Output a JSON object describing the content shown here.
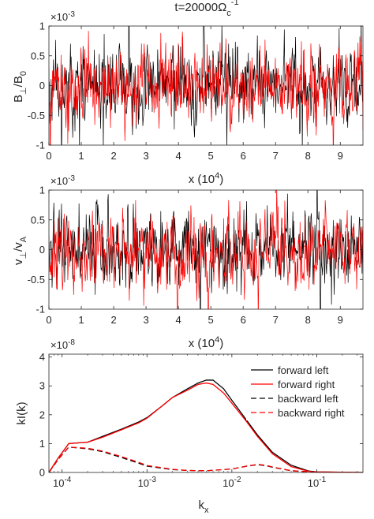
{
  "figure_title": {
    "prefix": "t=20000",
    "omega": "Ω",
    "sub": "c",
    "sup": "-1"
  },
  "chart_data": [
    {
      "type": "line",
      "ylabel": {
        "main": "B",
        "sub": "⊥",
        "rest": "/B",
        "sub2": "0"
      },
      "xlabel": {
        "main": "x (10",
        "sup": "4",
        "close": ")"
      },
      "exponent": {
        "base": "×10",
        "sup": "-3"
      },
      "xlim": [
        0,
        9.7
      ],
      "ylim": [
        -1,
        1
      ],
      "xticks": [
        0,
        1,
        2,
        3,
        4,
        5,
        6,
        7,
        8,
        9
      ],
      "xticklabels": [
        "0",
        "1",
        "2",
        "3",
        "4",
        "5",
        "6",
        "7",
        "8",
        "9"
      ],
      "yticks": [
        -1,
        -0.5,
        0,
        0.5,
        1
      ],
      "yticklabels": [
        "-1",
        "-0.5",
        "0",
        "0.5",
        "1"
      ],
      "series": [
        {
          "color": "#000000",
          "samples": 700,
          "seed": 11,
          "amp": 0.3
        },
        {
          "color": "#ff0000",
          "samples": 700,
          "seed": 29,
          "amp": 0.3
        }
      ]
    },
    {
      "type": "line",
      "ylabel": {
        "main": "v",
        "sub": "⊥",
        "rest": "/v",
        "sub2": "A"
      },
      "xlabel": {
        "main": "x (10",
        "sup": "4",
        "close": ")"
      },
      "exponent": {
        "base": "×10",
        "sup": "-3"
      },
      "xlim": [
        0,
        9.7
      ],
      "ylim": [
        -1,
        1
      ],
      "xticks": [
        0,
        1,
        2,
        3,
        4,
        5,
        6,
        7,
        8,
        9
      ],
      "xticklabels": [
        "0",
        "1",
        "2",
        "3",
        "4",
        "5",
        "6",
        "7",
        "8",
        "9"
      ],
      "yticks": [
        -1,
        -0.5,
        0,
        0.5,
        1
      ],
      "yticklabels": [
        "-1",
        "-0.5",
        "0",
        "0.5",
        "1"
      ],
      "series": [
        {
          "color": "#000000",
          "samples": 700,
          "seed": 47,
          "amp": 0.3
        },
        {
          "color": "#ff0000",
          "samples": 700,
          "seed": 83,
          "amp": 0.3
        }
      ]
    },
    {
      "type": "line",
      "xscale": "log",
      "ylabel": {
        "main": "kI(k)"
      },
      "xlabel": {
        "main": "k",
        "sub": "x"
      },
      "exponent": {
        "base": "×10",
        "sup": "-8"
      },
      "xlim": [
        7e-05,
        0.35
      ],
      "ylim": [
        0,
        4.1
      ],
      "xticks": [
        0.0001,
        0.001,
        0.01,
        0.1
      ],
      "xticklabels": [
        {
          "base": "10",
          "sup": "-4"
        },
        {
          "base": "10",
          "sup": "-3"
        },
        {
          "base": "10",
          "sup": "-2"
        },
        {
          "base": "10",
          "sup": "-1"
        }
      ],
      "yticks": [
        0,
        1,
        2,
        3,
        4
      ],
      "yticklabels": [
        "0",
        "1",
        "2",
        "3",
        "4"
      ],
      "legend": {
        "position": "top-right"
      },
      "series": [
        {
          "name": "forward left",
          "color": "#000000",
          "dash": "solid",
          "points": [
            [
              7e-05,
              0
            ],
            [
              9e-05,
              0.5
            ],
            [
              0.00012,
              1.0
            ],
            [
              0.0002,
              1.05
            ],
            [
              0.0003,
              1.25
            ],
            [
              0.0005,
              1.5
            ],
            [
              0.0008,
              1.75
            ],
            [
              0.001,
              1.9
            ],
            [
              0.0015,
              2.3
            ],
            [
              0.002,
              2.6
            ],
            [
              0.003,
              2.9
            ],
            [
              0.004,
              3.1
            ],
            [
              0.005,
              3.2
            ],
            [
              0.006,
              3.2
            ],
            [
              0.008,
              2.9
            ],
            [
              0.01,
              2.5
            ],
            [
              0.015,
              1.8
            ],
            [
              0.02,
              1.3
            ],
            [
              0.03,
              0.7
            ],
            [
              0.05,
              0.25
            ],
            [
              0.08,
              0.05
            ],
            [
              0.1,
              0.02
            ],
            [
              0.35,
              0
            ]
          ]
        },
        {
          "name": "forward right",
          "color": "#ff0000",
          "dash": "solid",
          "points": [
            [
              7e-05,
              0
            ],
            [
              9e-05,
              0.5
            ],
            [
              0.00012,
              1.0
            ],
            [
              0.0002,
              1.05
            ],
            [
              0.0003,
              1.22
            ],
            [
              0.0005,
              1.48
            ],
            [
              0.0008,
              1.72
            ],
            [
              0.001,
              1.88
            ],
            [
              0.0015,
              2.3
            ],
            [
              0.002,
              2.6
            ],
            [
              0.003,
              2.85
            ],
            [
              0.004,
              3.05
            ],
            [
              0.005,
              3.1
            ],
            [
              0.006,
              3.05
            ],
            [
              0.008,
              2.75
            ],
            [
              0.01,
              2.4
            ],
            [
              0.015,
              1.75
            ],
            [
              0.02,
              1.25
            ],
            [
              0.03,
              0.65
            ],
            [
              0.05,
              0.2
            ],
            [
              0.08,
              0.04
            ],
            [
              0.1,
              0.02
            ],
            [
              0.35,
              0
            ]
          ]
        },
        {
          "name": "backward left",
          "color": "#000000",
          "dash": "dashed",
          "points": [
            [
              7e-05,
              0
            ],
            [
              9e-05,
              0.45
            ],
            [
              0.00012,
              0.88
            ],
            [
              0.0002,
              0.82
            ],
            [
              0.0003,
              0.72
            ],
            [
              0.0005,
              0.52
            ],
            [
              0.0008,
              0.32
            ],
            [
              0.001,
              0.22
            ],
            [
              0.002,
              0.1
            ],
            [
              0.003,
              0.07
            ],
            [
              0.005,
              0.06
            ],
            [
              0.01,
              0.12
            ],
            [
              0.015,
              0.22
            ],
            [
              0.02,
              0.27
            ],
            [
              0.025,
              0.24
            ],
            [
              0.03,
              0.18
            ],
            [
              0.05,
              0.06
            ],
            [
              0.1,
              0.01
            ],
            [
              0.35,
              0
            ]
          ]
        },
        {
          "name": "backward right",
          "color": "#ff0000",
          "dash": "dashed",
          "points": [
            [
              7e-05,
              0
            ],
            [
              9e-05,
              0.45
            ],
            [
              0.00012,
              0.88
            ],
            [
              0.0002,
              0.84
            ],
            [
              0.0003,
              0.74
            ],
            [
              0.0005,
              0.55
            ],
            [
              0.0008,
              0.35
            ],
            [
              0.001,
              0.24
            ],
            [
              0.002,
              0.11
            ],
            [
              0.003,
              0.07
            ],
            [
              0.005,
              0.06
            ],
            [
              0.01,
              0.12
            ],
            [
              0.015,
              0.22
            ],
            [
              0.02,
              0.28
            ],
            [
              0.025,
              0.25
            ],
            [
              0.03,
              0.19
            ],
            [
              0.05,
              0.06
            ],
            [
              0.1,
              0.01
            ],
            [
              0.35,
              0
            ]
          ]
        }
      ]
    }
  ]
}
